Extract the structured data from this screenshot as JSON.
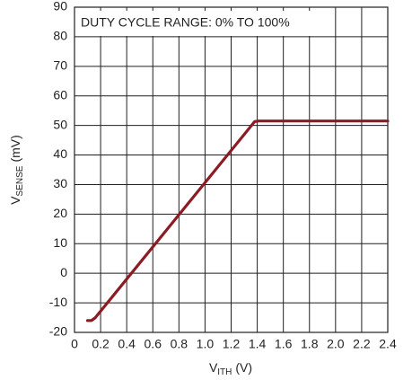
{
  "chart_data": {
    "type": "line",
    "annotation": "DUTY CYCLE RANGE: 0% TO 100%",
    "x_label": {
      "main": "V",
      "sub": "ITH",
      "unit": "(V)"
    },
    "y_label": {
      "main": "V",
      "sub": "SENSE",
      "unit": "(mV)"
    },
    "xlim": [
      0,
      2.4
    ],
    "ylim": [
      -20,
      90
    ],
    "xticks": [
      0,
      0.2,
      0.4,
      0.6,
      0.8,
      {
        "value": 1,
        "label": "1.0"
      },
      1.2,
      1.4,
      1.6,
      1.8,
      {
        "value": 2,
        "label": "2.0"
      },
      2.2,
      2.4
    ],
    "yticks": [
      -20,
      -10,
      0,
      10,
      20,
      30,
      40,
      50,
      60,
      70,
      80,
      90
    ],
    "grid": true,
    "series": [
      {
        "color": "#8b1c24",
        "x": [
          0.1,
          0.13,
          0.16,
          1.38,
          1.41,
          2.4
        ],
        "values": [
          -16,
          -16,
          -15,
          51.3,
          51.5,
          51.5
        ]
      }
    ]
  }
}
